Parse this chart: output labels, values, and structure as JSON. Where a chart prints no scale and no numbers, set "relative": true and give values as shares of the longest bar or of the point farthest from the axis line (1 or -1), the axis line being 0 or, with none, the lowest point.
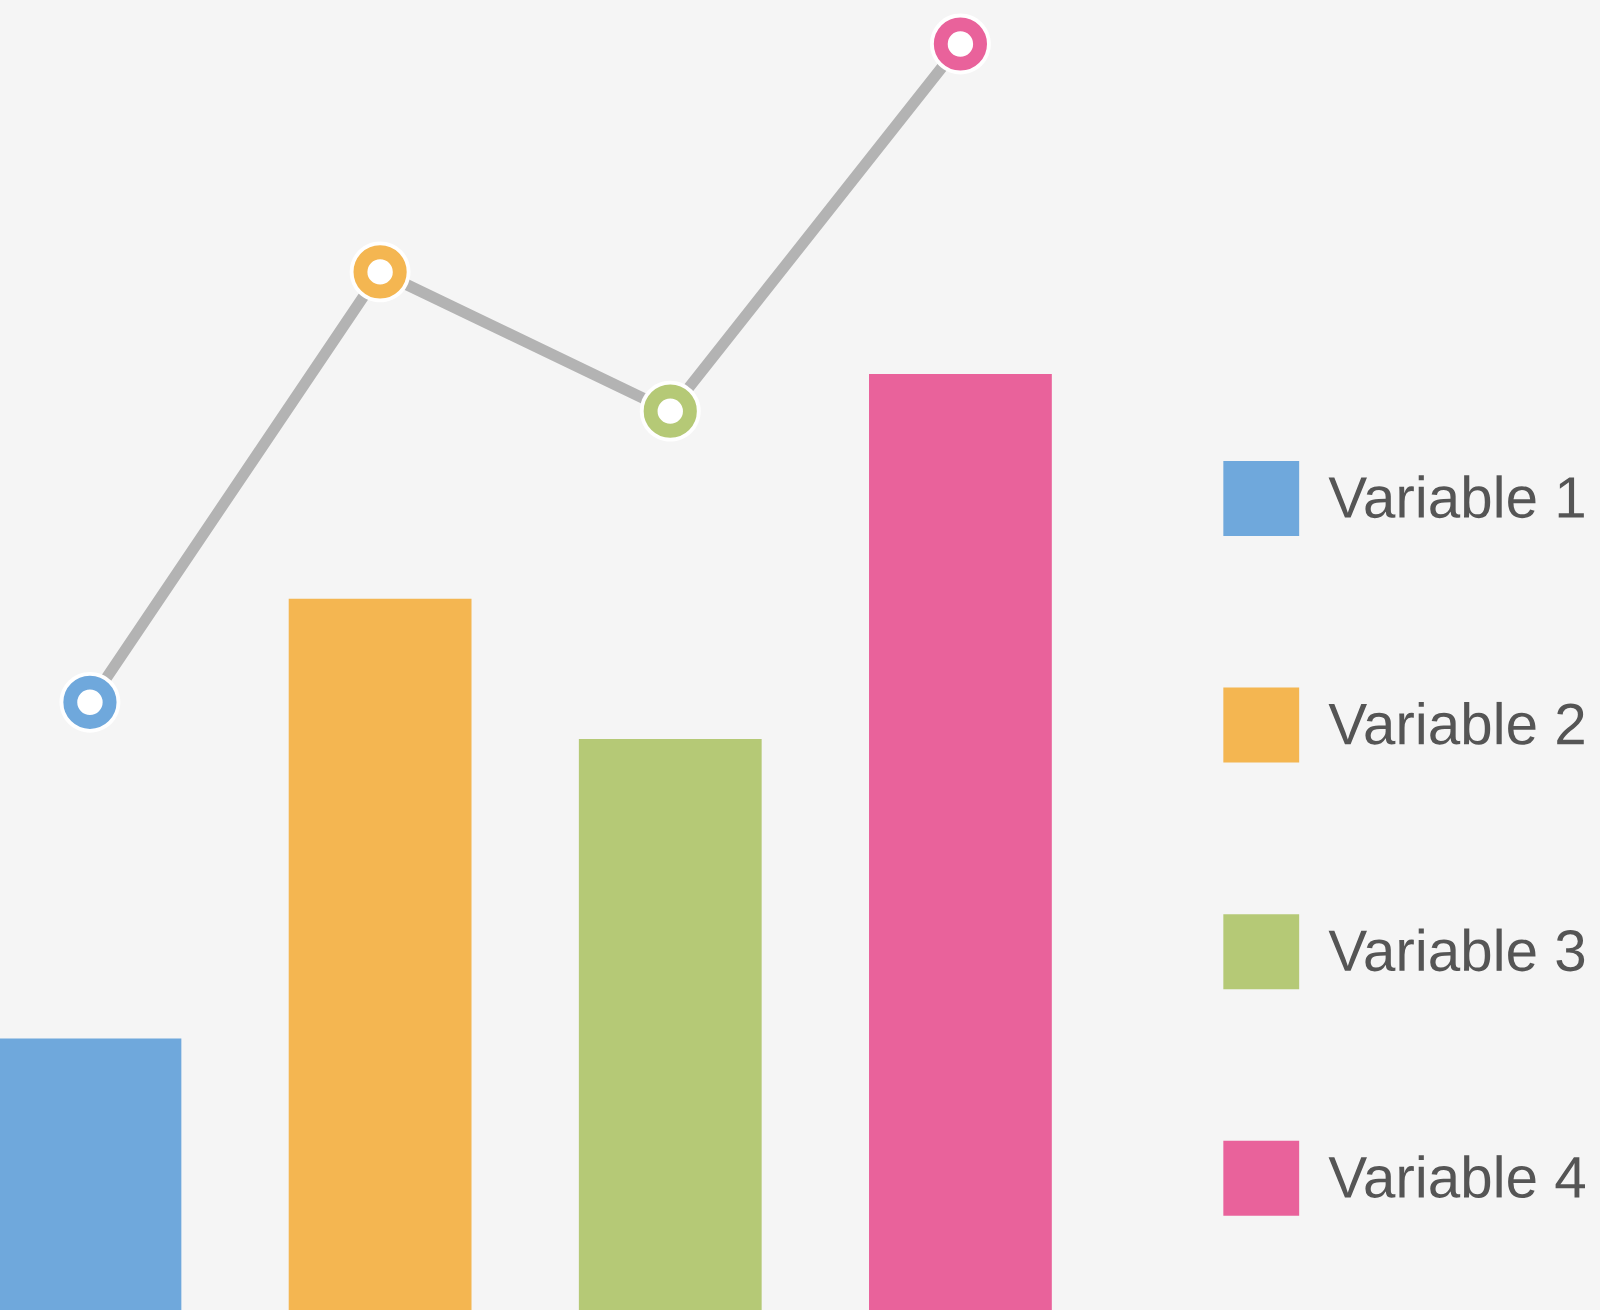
{
  "chart_data": [
    {
      "type": "bar",
      "relative": true,
      "stacked": true,
      "categories": [
        null,
        null,
        null,
        null
      ],
      "legend": "right",
      "series": [
        {
          "name": "Variable 1",
          "color": "#6fa8dc",
          "values": [
            0.29,
            null,
            null,
            null
          ]
        },
        {
          "name": "Variable 2",
          "color": "#f4b651",
          "values": [
            null,
            0.76,
            null,
            null
          ]
        },
        {
          "name": "Variable 3",
          "color": "#b5c976",
          "values": [
            null,
            null,
            0.61,
            null
          ]
        },
        {
          "name": "Variable 4",
          "color": "#e9629b",
          "values": [
            null,
            null,
            null,
            1.0
          ]
        }
      ]
    },
    {
      "type": "line",
      "relative": true,
      "categories": [
        null,
        null,
        null,
        null
      ],
      "marker": "circle",
      "line_style": "solid",
      "series": [
        {
          "color": "#b3b3b3",
          "colors": [
            "#6fa8dc",
            "#f4b651",
            "#b5c976",
            "#e9629b"
          ],
          "values": [
            0.48,
            0.82,
            0.71,
            1.0
          ]
        }
      ]
    }
  ]
}
